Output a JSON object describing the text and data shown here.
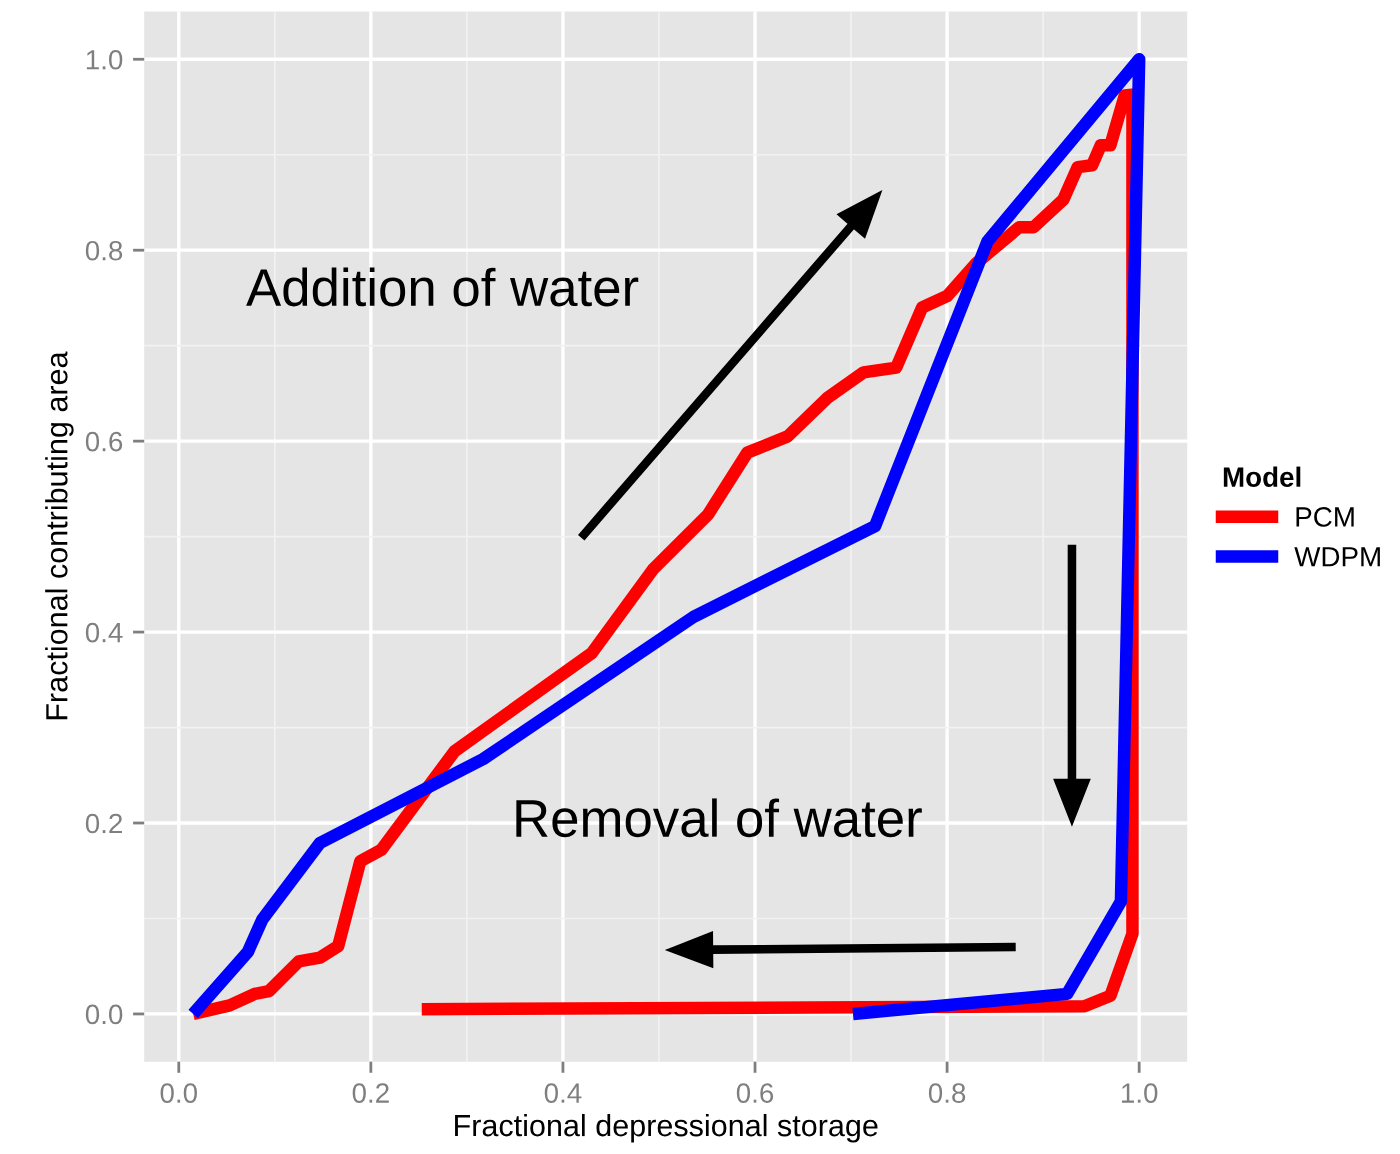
{
  "chart_data": {
    "type": "line",
    "xlabel": "Fractional depressional storage",
    "ylabel": "Fractional contributing area",
    "legend_title": "Model",
    "legend": "right",
    "grid": true,
    "line_style": "solid",
    "marker": "none",
    "xlim": [
      -0.036,
      1.05
    ],
    "ylim": [
      -0.05,
      1.05
    ],
    "xticks": [
      {
        "value": 0,
        "label": "0.0"
      },
      0.2,
      0.4,
      0.6,
      0.8,
      {
        "value": 1,
        "label": "1.0"
      }
    ],
    "yticks": [
      {
        "value": 0,
        "label": "0.0"
      },
      0.2,
      0.4,
      0.6,
      0.8,
      {
        "value": 1,
        "label": "1.0"
      }
    ],
    "annotations": [
      "Addition of water",
      "Removal of water"
    ],
    "series": [
      {
        "name": "PCM",
        "color": "#ff0000",
        "x": [
          0.015,
          0.053,
          0.079,
          0.094,
          0.125,
          0.147,
          0.166,
          0.189,
          0.211,
          0.287,
          0.43,
          0.494,
          0.551,
          0.592,
          0.634,
          0.675,
          0.713,
          0.747,
          0.774,
          0.8,
          0.83,
          0.875,
          0.89,
          0.921,
          0.936,
          0.951,
          0.96,
          0.97,
          0.985,
          0.993,
          0.993,
          0.97,
          0.943,
          0.253
        ],
        "values": [
          0,
          0.009,
          0.021,
          0.024,
          0.055,
          0.059,
          0.071,
          0.16,
          0.172,
          0.275,
          0.378,
          0.466,
          0.523,
          0.588,
          0.605,
          0.645,
          0.672,
          0.677,
          0.74,
          0.752,
          0.786,
          0.824,
          0.824,
          0.853,
          0.887,
          0.889,
          0.91,
          0.91,
          0.962,
          0.963,
          0.084,
          0.019,
          0.008,
          0.005
        ]
      },
      {
        "name": "WDPM",
        "color": "#0000ff",
        "x": [
          0.015,
          0.072,
          0.087,
          0.147,
          0.317,
          0.536,
          0.725,
          0.842,
          1.0,
          0.981,
          0.925,
          0.702
        ],
        "values": [
          0,
          0.065,
          0.099,
          0.179,
          0.267,
          0.416,
          0.511,
          0.809,
          1.0,
          0.118,
          0.021,
          0
        ]
      }
    ]
  }
}
